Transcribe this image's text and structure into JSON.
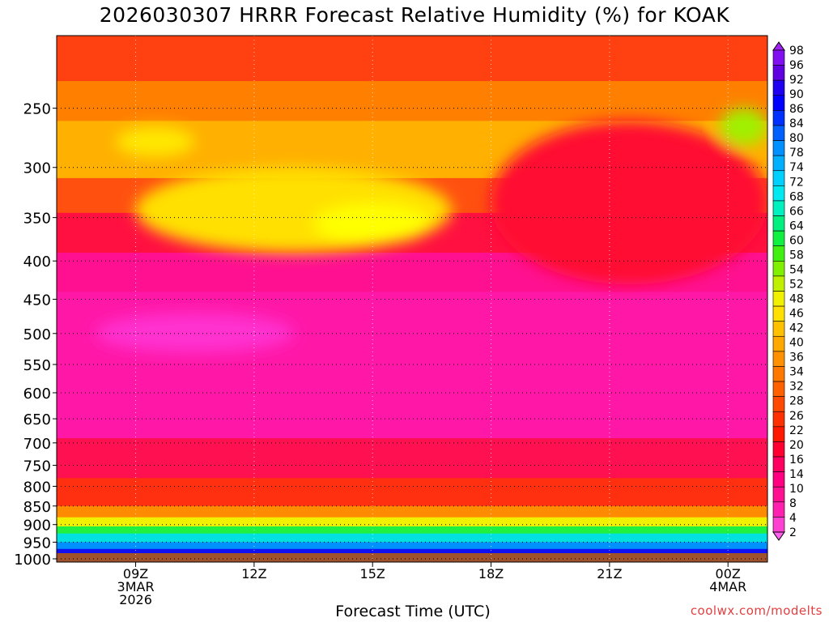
{
  "title": "2026030307 HRRR Forecast Relative Humidity (%) for KOAK",
  "xlabel": "Forecast Time (UTC)",
  "credit": "coolwx.com/modelts",
  "chart_data": {
    "type": "heatmap",
    "x_ticks": [
      {
        "hour": 9,
        "lines": [
          "09Z",
          "3MAR",
          "2026"
        ]
      },
      {
        "hour": 12,
        "lines": [
          "12Z"
        ]
      },
      {
        "hour": 15,
        "lines": [
          "15Z"
        ]
      },
      {
        "hour": 18,
        "lines": [
          "18Z"
        ]
      },
      {
        "hour": 21,
        "lines": [
          "21Z"
        ]
      },
      {
        "hour": 24,
        "lines": [
          "00Z",
          "4MAR"
        ]
      }
    ],
    "xlim": [
      7,
      25
    ],
    "y_ticks": [
      "250",
      "300",
      "350",
      "400",
      "450",
      "500",
      "550",
      "600",
      "650",
      "700",
      "750",
      "800",
      "850",
      "900",
      "950",
      "1000"
    ],
    "y_scale": "log",
    "ylim": [
      200,
      1010
    ],
    "grid": true,
    "colorbar": {
      "labels": [
        "98",
        "96",
        "92",
        "90",
        "86",
        "84",
        "80",
        "78",
        "74",
        "72",
        "68",
        "66",
        "64",
        "60",
        "58",
        "54",
        "52",
        "48",
        "46",
        "42",
        "40",
        "36",
        "34",
        "32",
        "28",
        "26",
        "22",
        "20",
        "16",
        "14",
        "10",
        "8",
        "4",
        "2"
      ],
      "colors": [
        "#a020f0",
        "#8010f0",
        "#6000e0",
        "#2000f0",
        "#0000ff",
        "#0030ff",
        "#0060ff",
        "#0090ff",
        "#00b0ff",
        "#00d0ff",
        "#00e8f0",
        "#00f0c0",
        "#00f080",
        "#10f040",
        "#40f010",
        "#80f000",
        "#c0f000",
        "#f0f000",
        "#ffe000",
        "#ffc000",
        "#ffa800",
        "#ff9000",
        "#ff7800",
        "#ff6000",
        "#ff4800",
        "#ff3000",
        "#ff1800",
        "#ff0030",
        "#ff0060",
        "#ff0080",
        "#ff1090",
        "#ff20b0",
        "#ff40d0",
        "#ff60ee"
      ]
    },
    "surface_color": "#a0522d",
    "bands": [
      {
        "pressure": [
          200,
          230
        ],
        "rh": 20,
        "color": "#ff4010"
      },
      {
        "pressure": [
          230,
          260
        ],
        "rh": 28,
        "color": "#ff8000"
      },
      {
        "pressure": [
          260,
          310
        ],
        "rh": 36,
        "color": "#ffb000"
      },
      {
        "pressure": [
          310,
          345
        ],
        "rh": 26,
        "color": "#ff5010"
      },
      {
        "pressure": [
          345,
          390
        ],
        "rh": 16,
        "color": "#ff1040"
      },
      {
        "pressure": [
          390,
          440
        ],
        "rh": 10,
        "color": "#ff1090"
      },
      {
        "pressure": [
          440,
          690
        ],
        "rh": 6,
        "color": "#ff18a8"
      },
      {
        "pressure": [
          690,
          780
        ],
        "rh": 16,
        "color": "#ff1050"
      },
      {
        "pressure": [
          780,
          850
        ],
        "rh": 22,
        "color": "#ff3010"
      },
      {
        "pressure": [
          850,
          880
        ],
        "rh": 32,
        "color": "#ff8c00"
      },
      {
        "pressure": [
          880,
          905
        ],
        "rh": 46,
        "color": "#f0f000"
      },
      {
        "pressure": [
          905,
          925
        ],
        "rh": 60,
        "color": "#20f040"
      },
      {
        "pressure": [
          925,
          950
        ],
        "rh": 70,
        "color": "#00e0e0"
      },
      {
        "pressure": [
          950,
          970
        ],
        "rh": 78,
        "color": "#0090ff"
      },
      {
        "pressure": [
          970,
          990
        ],
        "rh": 86,
        "color": "#1010f0"
      },
      {
        "pressure": [
          990,
          1000
        ],
        "rh": 92,
        "color": "#6010e8"
      }
    ],
    "features": [
      {
        "label": "dry-upper-pocket",
        "hours": [
          9,
          17
        ],
        "pressure": [
          300,
          390
        ],
        "color": "#ffe000"
      },
      {
        "label": "yellow-core",
        "hours": [
          13.5,
          16.5
        ],
        "pressure": [
          335,
          380
        ],
        "color": "#ffff00"
      },
      {
        "label": "upper-left-yellow",
        "hours": [
          8.5,
          10.5
        ],
        "pressure": [
          265,
          290
        ],
        "color": "#ffe800"
      },
      {
        "label": "mid-magenta",
        "hours": [
          8,
          13
        ],
        "pressure": [
          470,
          530
        ],
        "color": "#ff30d0"
      },
      {
        "label": "right-red",
        "hours": [
          18,
          25
        ],
        "pressure": [
          260,
          430
        ],
        "color": "#ff1030"
      },
      {
        "label": "upper-right-green",
        "hours": [
          23.8,
          25
        ],
        "pressure": [
          250,
          280
        ],
        "color": "#a0f000"
      }
    ]
  }
}
